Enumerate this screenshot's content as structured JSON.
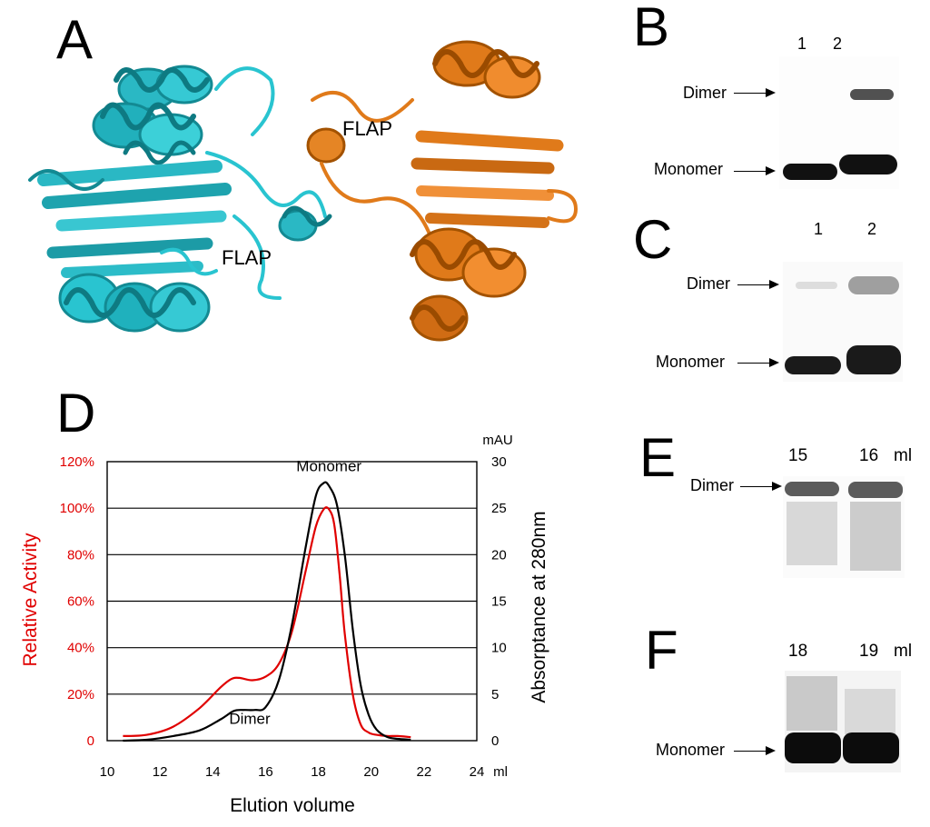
{
  "panels": {
    "A": {
      "letter": "A",
      "flap_left": "FLAP",
      "flap_right": "FLAP",
      "colors": {
        "left_protein": "#29c4d0",
        "right_protein": "#e07a1a"
      }
    },
    "B": {
      "letter": "B",
      "lanes": [
        "1",
        "2"
      ],
      "dimer": "Dimer",
      "monomer": "Monomer"
    },
    "C": {
      "letter": "C",
      "lanes": [
        "1",
        "2"
      ],
      "dimer": "Dimer",
      "monomer": "Monomer"
    },
    "D": {
      "letter": "D"
    },
    "E": {
      "letter": "E",
      "lanes": [
        "15",
        "16"
      ],
      "unit": "ml",
      "dimer": "Dimer"
    },
    "F": {
      "letter": "F",
      "lanes": [
        "18",
        "19"
      ],
      "unit": "ml",
      "monomer": "Monomer"
    }
  },
  "chart_data": {
    "type": "line",
    "xlabel": "Elution volume",
    "ylabel_left": "Relative Activity",
    "ylabel_right": "Absorptance at 280nm",
    "right_unit": "mAU",
    "x_unit": "ml",
    "xlim": [
      10,
      24
    ],
    "ylim_left": [
      0,
      120
    ],
    "ylim_right": [
      0,
      30
    ],
    "x_ticks": [
      "10",
      "12",
      "14",
      "16",
      "18",
      "20",
      "22",
      "24"
    ],
    "y_ticks_left": [
      "0",
      "20%",
      "40%",
      "60%",
      "80%",
      "100%",
      "120%"
    ],
    "y_ticks_right": [
      "0",
      "5",
      "10",
      "15",
      "20",
      "25",
      "30"
    ],
    "grid": "horizontal",
    "annotations": [
      {
        "text": "Monomer",
        "x": 18.4,
        "y": 28.6,
        "axis": "right"
      },
      {
        "text": "Dimer",
        "x": 15.4,
        "y": 1.4,
        "axis": "right"
      }
    ],
    "series": [
      {
        "axis": "left",
        "color": "#e00000",
        "x": [
          10.6,
          11.5,
          12.5,
          13.5,
          14.3,
          14.7,
          15.0,
          15.5,
          16.0,
          16.5,
          17.0,
          17.5,
          17.9,
          18.2,
          18.4,
          18.6,
          18.8,
          19.0,
          19.3,
          19.6,
          19.9,
          20.2,
          20.6,
          21.0,
          21.5
        ],
        "y": [
          2,
          2.5,
          6,
          14,
          23,
          26.5,
          27,
          26,
          27.5,
          33,
          47,
          72,
          92,
          99.5,
          99.5,
          93,
          72,
          46,
          20,
          7,
          3.5,
          2.5,
          2,
          2,
          1.5
        ]
      },
      {
        "axis": "right",
        "color": "#000000",
        "x": [
          10.6,
          11.5,
          12.5,
          13.5,
          14.3,
          14.8,
          15.2,
          15.6,
          16.0,
          16.5,
          17.0,
          17.5,
          17.9,
          18.2,
          18.4,
          18.7,
          19.0,
          19.3,
          19.6,
          19.9,
          20.2,
          20.6,
          21.0,
          21.5
        ],
        "y": [
          0,
          0.1,
          0.5,
          1.1,
          2.3,
          3.2,
          3.3,
          3.3,
          3.6,
          6.5,
          12.5,
          20.5,
          26.3,
          27.7,
          27.4,
          25.4,
          20,
          12,
          6,
          2.8,
          1.2,
          0.4,
          0.2,
          0.1
        ]
      }
    ]
  }
}
